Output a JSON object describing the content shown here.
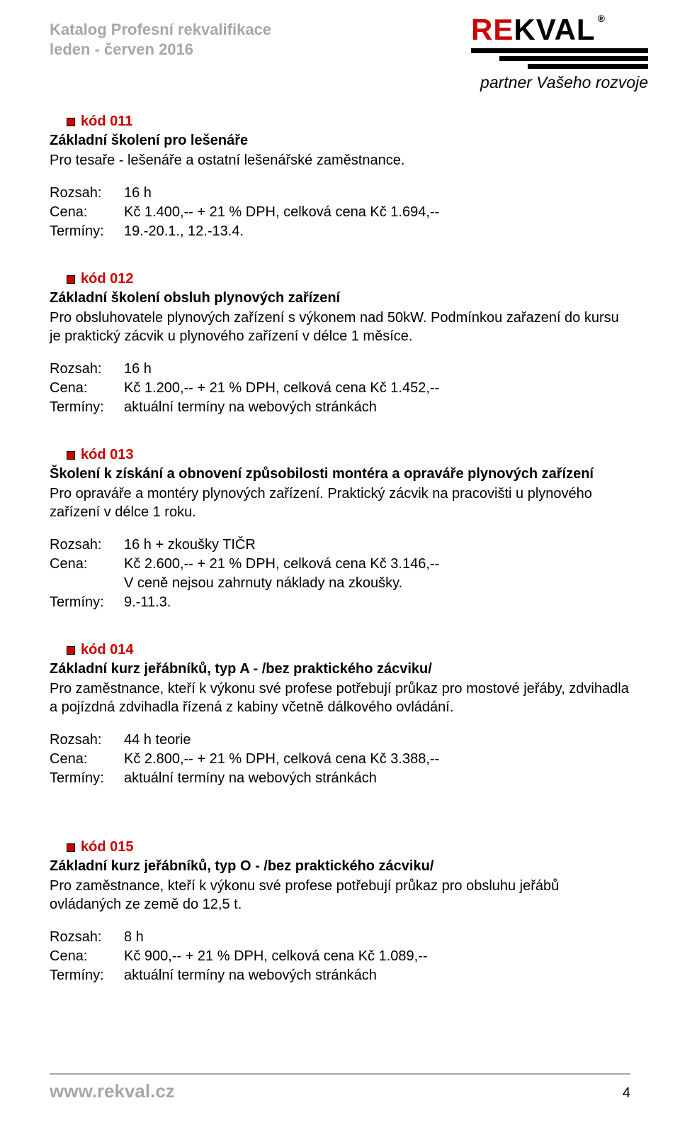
{
  "header": {
    "title_line1": "Katalog Profesní rekvalifikace",
    "title_line2": "leden - červen 2016"
  },
  "logo": {
    "text_red": "RE",
    "text_black": "KVAL",
    "registered": "®",
    "tagline": "partner Vašeho rozvoje"
  },
  "courses": [
    {
      "code": "kód 011",
      "title": "Základní školení pro lešenáře",
      "desc": "Pro tesaře - lešenáře a ostatní lešenářské zaměstnance.",
      "rows": [
        {
          "label": "Rozsah:",
          "value": "16 h"
        },
        {
          "label": "Cena:",
          "value": "Kč 1.400,-- + 21 % DPH, celková cena Kč 1.694,--"
        },
        {
          "label": "Termíny:",
          "value": "19.-20.1., 12.-13.4."
        }
      ]
    },
    {
      "code": "kód 012",
      "title": "Základní školení obsluh plynových zařízení",
      "desc": "Pro obsluhovatele plynových zařízení s výkonem nad 50kW. Podmínkou zařazení do kursu je praktický zácvik u plynového zařízení v délce 1 měsíce.",
      "rows": [
        {
          "label": "Rozsah:",
          "value": "16 h"
        },
        {
          "label": "Cena:",
          "value": "Kč 1.200,-- + 21 % DPH, celková cena Kč 1.452,--"
        },
        {
          "label": "Termíny:",
          "value": "aktuální termíny na webových stránkách"
        }
      ]
    },
    {
      "code": "kód 013",
      "title": "Školení k získání a obnovení způsobilosti montéra a opraváře plynových zařízení",
      "desc": "Pro opraváře a montéry plynových zařízení. Praktický zácvik na pracovišti u plynového zařízení v délce 1 roku.",
      "rows": [
        {
          "label": "Rozsah:",
          "value": "16 h + zkoušky TIČR"
        },
        {
          "label": "Cena:",
          "value": "Kč 2.600,--  + 21 % DPH, celková cena Kč 3.146,--"
        },
        {
          "label": "",
          "value": "V ceně nejsou zahrnuty náklady na zkoušky."
        },
        {
          "label": "Termíny:",
          "value": "9.-11.3."
        }
      ]
    },
    {
      "code": "kód 014",
      "title": "Základní kurz jeřábníků, typ A - /bez praktického zácviku/",
      "desc": "Pro zaměstnance, kteří k výkonu své profese potřebují průkaz pro mostové jeřáby, zdvihadla a pojízdná zdvihadla řízená z kabiny včetně dálkového ovládání.",
      "rows": [
        {
          "label": "Rozsah:",
          "value": "44 h teorie"
        },
        {
          "label": "Cena:",
          "value": "Kč 2.800,-- + 21 % DPH, celková cena Kč 3.388,--"
        },
        {
          "label": "Termíny:",
          "value": "aktuální termíny na webových stránkách"
        }
      ]
    },
    {
      "code": "kód 015",
      "title": "Základní kurz jeřábníků, typ O   - /bez praktického zácviku/",
      "desc": "Pro zaměstnance, kteří k výkonu své profese potřebují průkaz pro obsluhu jeřábů ovládaných ze země do 12,5 t.",
      "rows": [
        {
          "label": "Rozsah:",
          "value": "8 h"
        },
        {
          "label": "Cena:",
          "value": "Kč 900,-- + 21 % DPH, celková cena Kč 1.089,--"
        },
        {
          "label": "Termíny:",
          "value": "aktuální termíny na webových stránkách"
        }
      ]
    }
  ],
  "footer": {
    "url": "www.rekval.cz",
    "page": "4"
  },
  "colors": {
    "red": "#cc0000",
    "gray": "#a7a7a7",
    "black": "#000000",
    "bg": "#ffffff"
  }
}
